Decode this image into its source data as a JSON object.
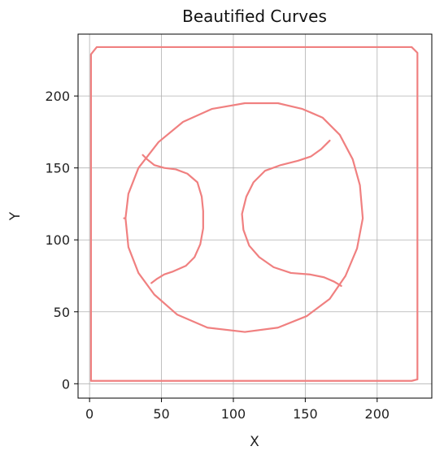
{
  "chart_data": {
    "type": "line",
    "title": "Beautified Curves",
    "xlabel": "X",
    "ylabel": "Y",
    "xlim": [
      -8,
      238
    ],
    "ylim": [
      -10,
      243
    ],
    "xticks": [
      0,
      50,
      100,
      150,
      200
    ],
    "yticks": [
      0,
      50,
      100,
      150,
      200
    ],
    "grid": true,
    "line_color": "#f08080",
    "series": [
      {
        "values": [
          [
            1,
            2
          ],
          [
            1,
            229
          ],
          [
            5,
            234
          ],
          [
            224,
            234
          ],
          [
            228,
            230
          ],
          [
            228,
            3
          ],
          [
            224,
            2
          ],
          [
            1,
            2
          ]
        ]
      },
      {
        "shape": "circle",
        "values": [
          [
            190,
            115
          ],
          [
            188,
            138
          ],
          [
            183,
            156
          ],
          [
            174,
            173
          ],
          [
            162,
            185
          ],
          [
            148,
            191
          ],
          [
            131,
            195
          ],
          [
            108,
            195
          ],
          [
            85,
            191
          ],
          [
            65,
            182
          ],
          [
            48,
            168
          ],
          [
            34,
            150
          ],
          [
            27,
            132
          ],
          [
            25,
            115
          ],
          [
            27,
            95
          ],
          [
            34,
            77
          ],
          [
            45,
            62
          ],
          [
            61,
            48
          ],
          [
            82,
            39
          ],
          [
            108,
            36
          ],
          [
            131,
            39
          ],
          [
            151,
            47
          ],
          [
            167,
            59
          ],
          [
            178,
            75
          ],
          [
            186,
            94
          ],
          [
            190,
            115
          ]
        ]
      },
      {
        "values": [
          [
            25,
            115
          ],
          [
            24,
            115
          ]
        ]
      },
      {
        "values": [
          [
            37,
            159
          ],
          [
            40,
            156
          ],
          [
            45,
            152
          ],
          [
            52,
            150
          ],
          [
            60,
            149
          ],
          [
            68,
            146
          ],
          [
            75,
            140
          ],
          [
            78,
            130
          ],
          [
            79,
            120
          ],
          [
            79,
            108
          ],
          [
            77,
            97
          ],
          [
            73,
            88
          ],
          [
            67,
            82
          ],
          [
            58,
            78
          ],
          [
            52,
            76
          ],
          [
            47,
            73
          ],
          [
            43,
            70
          ]
        ]
      },
      {
        "values": [
          [
            167,
            169
          ],
          [
            161,
            163
          ],
          [
            154,
            158
          ],
          [
            145,
            155
          ],
          [
            133,
            152
          ],
          [
            122,
            148
          ],
          [
            114,
            140
          ],
          [
            109,
            130
          ],
          [
            106,
            118
          ],
          [
            107,
            107
          ],
          [
            111,
            96
          ],
          [
            118,
            88
          ],
          [
            128,
            81
          ],
          [
            140,
            77
          ],
          [
            153,
            76
          ],
          [
            163,
            74
          ],
          [
            170,
            71
          ],
          [
            175,
            68
          ]
        ]
      }
    ]
  }
}
